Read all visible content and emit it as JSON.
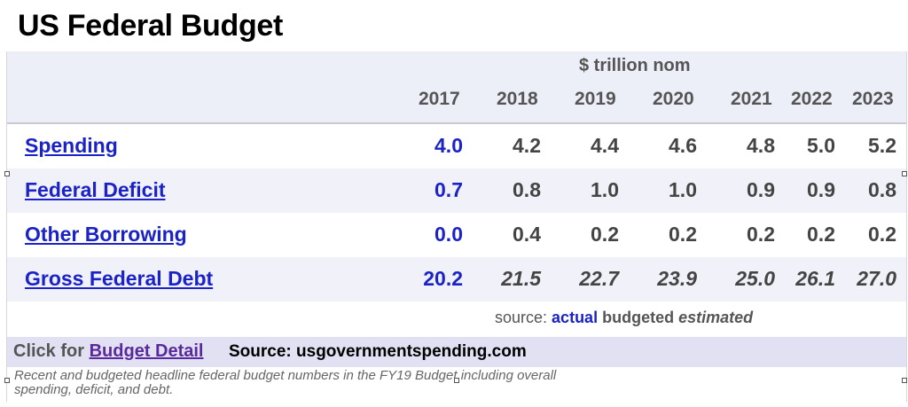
{
  "title": "US Federal Budget",
  "units": "$ trillion nom",
  "years": [
    "2017",
    "2018",
    "2019",
    "2020",
    "2021",
    "2022",
    "2023"
  ],
  "rows": [
    {
      "label": "Spending",
      "values": [
        "4.0",
        "4.2",
        "4.4",
        "4.6",
        "4.8",
        "5.0",
        "5.2"
      ],
      "kinds": [
        "actual",
        "budgeted",
        "budgeted",
        "budgeted",
        "budgeted",
        "budgeted",
        "budgeted"
      ]
    },
    {
      "label": "Federal Deficit",
      "values": [
        "0.7",
        "0.8",
        "1.0",
        "1.0",
        "0.9",
        "0.9",
        "0.8"
      ],
      "kinds": [
        "actual",
        "budgeted",
        "budgeted",
        "budgeted",
        "budgeted",
        "budgeted",
        "budgeted"
      ]
    },
    {
      "label": "Other Borrowing",
      "values": [
        "0.0",
        "0.4",
        "0.2",
        "0.2",
        "0.2",
        "0.2",
        "0.2"
      ],
      "kinds": [
        "actual",
        "budgeted",
        "budgeted",
        "budgeted",
        "budgeted",
        "budgeted",
        "budgeted"
      ]
    },
    {
      "label": "Gross Federal Debt",
      "values": [
        "20.2",
        "21.5",
        "22.7",
        "23.9",
        "25.0",
        "26.1",
        "27.0"
      ],
      "kinds": [
        "actual",
        "estimated",
        "estimated",
        "estimated",
        "estimated",
        "estimated",
        "estimated"
      ]
    }
  ],
  "legend": {
    "prefix": "source:",
    "actual": "actual",
    "budgeted": "budgeted",
    "estimated": "estimated"
  },
  "footer": {
    "click_prefix": "Click for",
    "link": "Budget Detail",
    "source": "Source: usgovernmentspending.com"
  },
  "caption": "Recent and budgeted headline federal budget numbers in the FY19 Budget including overall spending, deficit, and debt.",
  "colors": {
    "actual": "#1a22c8",
    "header_band": "#eceef8",
    "footer_band": "#e1e1f3"
  }
}
